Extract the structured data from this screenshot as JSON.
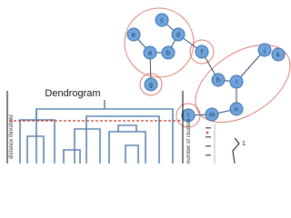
{
  "graph": {
    "nodes": [
      {
        "label": "a"
      },
      {
        "label": "b"
      },
      {
        "label": "c"
      },
      {
        "label": "d"
      },
      {
        "label": "e"
      },
      {
        "label": "f"
      },
      {
        "label": "g"
      },
      {
        "label": "h"
      },
      {
        "label": "i"
      },
      {
        "label": "j"
      },
      {
        "label": "k"
      },
      {
        "label": "l"
      },
      {
        "label": "m"
      },
      {
        "label": "n"
      }
    ]
  },
  "dendrogram": {
    "title": "Dendrogram",
    "y_label": "distance threshold",
    "side_label": "number of clusters",
    "plot_annotation": "1"
  }
}
